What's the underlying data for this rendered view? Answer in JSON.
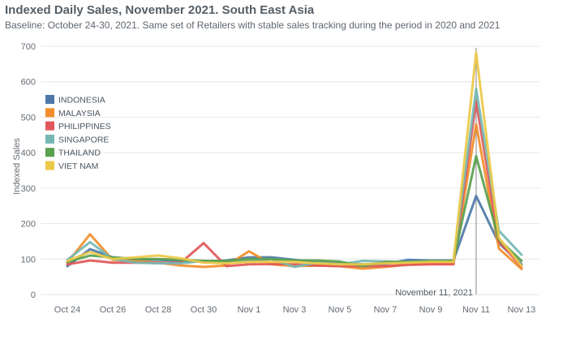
{
  "chart_data": {
    "type": "line",
    "title": "Indexed Daily Sales, November 2021. South East Asia",
    "subtitle": "Baseline: October 24-30, 2021. Same set of Retailers with stable sales tracking during the period in 2020 and 2021",
    "ylabel": "Indexed Sales",
    "xlabel": "",
    "ylim": [
      0,
      700
    ],
    "yticks": [
      0,
      100,
      200,
      300,
      400,
      500,
      600,
      700
    ],
    "grid": true,
    "legend_position": "left",
    "x_labels": [
      "Oct 24",
      "Oct 26",
      "Oct 28",
      "Oct 30",
      "Nov 1",
      "Nov 3",
      "Nov 5",
      "Nov 7",
      "Nov 9",
      "Nov 11",
      "Nov 13"
    ],
    "x": [
      "Oct 24",
      "Oct 25",
      "Oct 26",
      "Oct 27",
      "Oct 28",
      "Oct 29",
      "Oct 30",
      "Oct 31",
      "Nov 1",
      "Nov 2",
      "Nov 3",
      "Nov 4",
      "Nov 5",
      "Nov 6",
      "Nov 7",
      "Nov 8",
      "Nov 9",
      "Nov 10",
      "Nov 11",
      "Nov 12",
      "Nov 13"
    ],
    "annotation": {
      "label": "November 11, 2021",
      "x": "Nov 11"
    },
    "series": [
      {
        "name": "INDONESIA",
        "color": "#4e79a7",
        "values": [
          80,
          128,
          105,
          100,
          98,
          95,
          92,
          96,
          105,
          105,
          98,
          92,
          87,
          85,
          86,
          98,
          96,
          96,
          278,
          145,
          85
        ]
      },
      {
        "name": "MALAYSIA",
        "color": "#f28e2b",
        "values": [
          90,
          170,
          98,
          95,
          90,
          82,
          78,
          82,
          122,
          85,
          80,
          82,
          80,
          73,
          78,
          84,
          88,
          88,
          480,
          130,
          72
        ]
      },
      {
        "name": "PHILIPPINES",
        "color": "#e15759",
        "values": [
          85,
          96,
          90,
          90,
          90,
          90,
          145,
          80,
          85,
          86,
          85,
          82,
          80,
          80,
          80,
          84,
          85,
          85,
          545,
          150,
          78
        ]
      },
      {
        "name": "SINGAPORE",
        "color": "#76b7b2",
        "values": [
          98,
          148,
          100,
          90,
          88,
          88,
          95,
          90,
          95,
          100,
          78,
          90,
          85,
          95,
          93,
          92,
          95,
          95,
          580,
          180,
          112
        ]
      },
      {
        "name": "THAILAND",
        "color": "#59a14f",
        "values": [
          92,
          110,
          105,
          100,
          100,
          98,
          95,
          95,
          100,
          100,
          96,
          96,
          93,
          80,
          92,
          92,
          95,
          95,
          390,
          155,
          95
        ]
      },
      {
        "name": "VIET NAM",
        "color": "#edc948",
        "values": [
          95,
          120,
          100,
          105,
          110,
          102,
          90,
          88,
          92,
          92,
          92,
          88,
          85,
          85,
          88,
          90,
          92,
          92,
          682,
          160,
          80
        ]
      }
    ]
  }
}
